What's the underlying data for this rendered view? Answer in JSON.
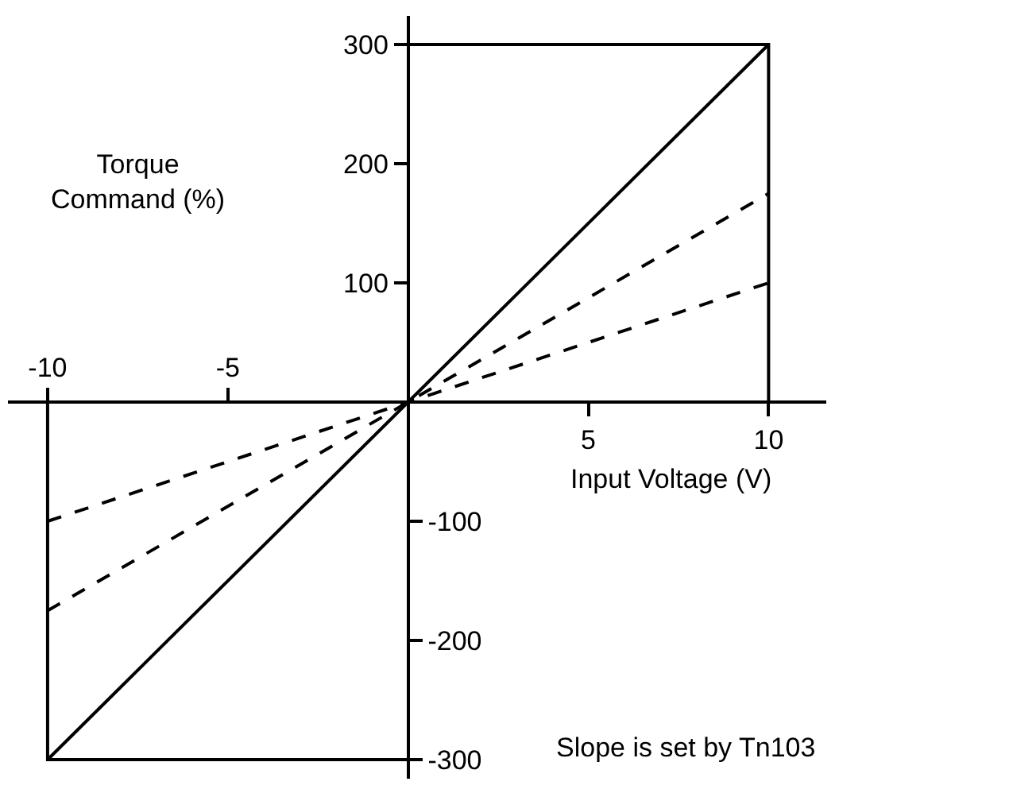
{
  "chart_data": {
    "type": "line",
    "xlabel": "Input Voltage (V)",
    "ylabel": "Torque Command (%)",
    "annotations": [
      "Slope is set by Tn103"
    ],
    "x": [
      -10,
      10
    ],
    "series": [
      {
        "color": "#000000",
        "values": [
          -300,
          300
        ],
        "line_style": "solid"
      },
      {
        "color": "#000000",
        "values": [
          -175,
          175
        ],
        "line_style": "dashed"
      },
      {
        "color": "#000000",
        "values": [
          -100,
          100
        ],
        "line_style": "dashed"
      },
      {
        "color": "#000000",
        "x": [
          0,
          10,
          10
        ],
        "values": [
          300,
          300,
          0
        ],
        "line_style": "solid"
      },
      {
        "color": "#000000",
        "x": [
          -10,
          -10,
          0
        ],
        "values": [
          0,
          -300,
          -300
        ],
        "line_style": "solid"
      }
    ],
    "xlim": [
      -11.1,
      11.6
    ],
    "ylim": [
      -316,
      324
    ],
    "xticks": [
      5,
      10
    ],
    "yticks": [
      100,
      200,
      300
    ],
    "x2lim": [
      -11.1,
      11.6
    ],
    "x2ticks": [
      -10,
      -5
    ],
    "y2lim": [
      -316,
      324
    ],
    "y2ticks": [
      -300,
      -200,
      -100
    ],
    "marker": "none"
  }
}
